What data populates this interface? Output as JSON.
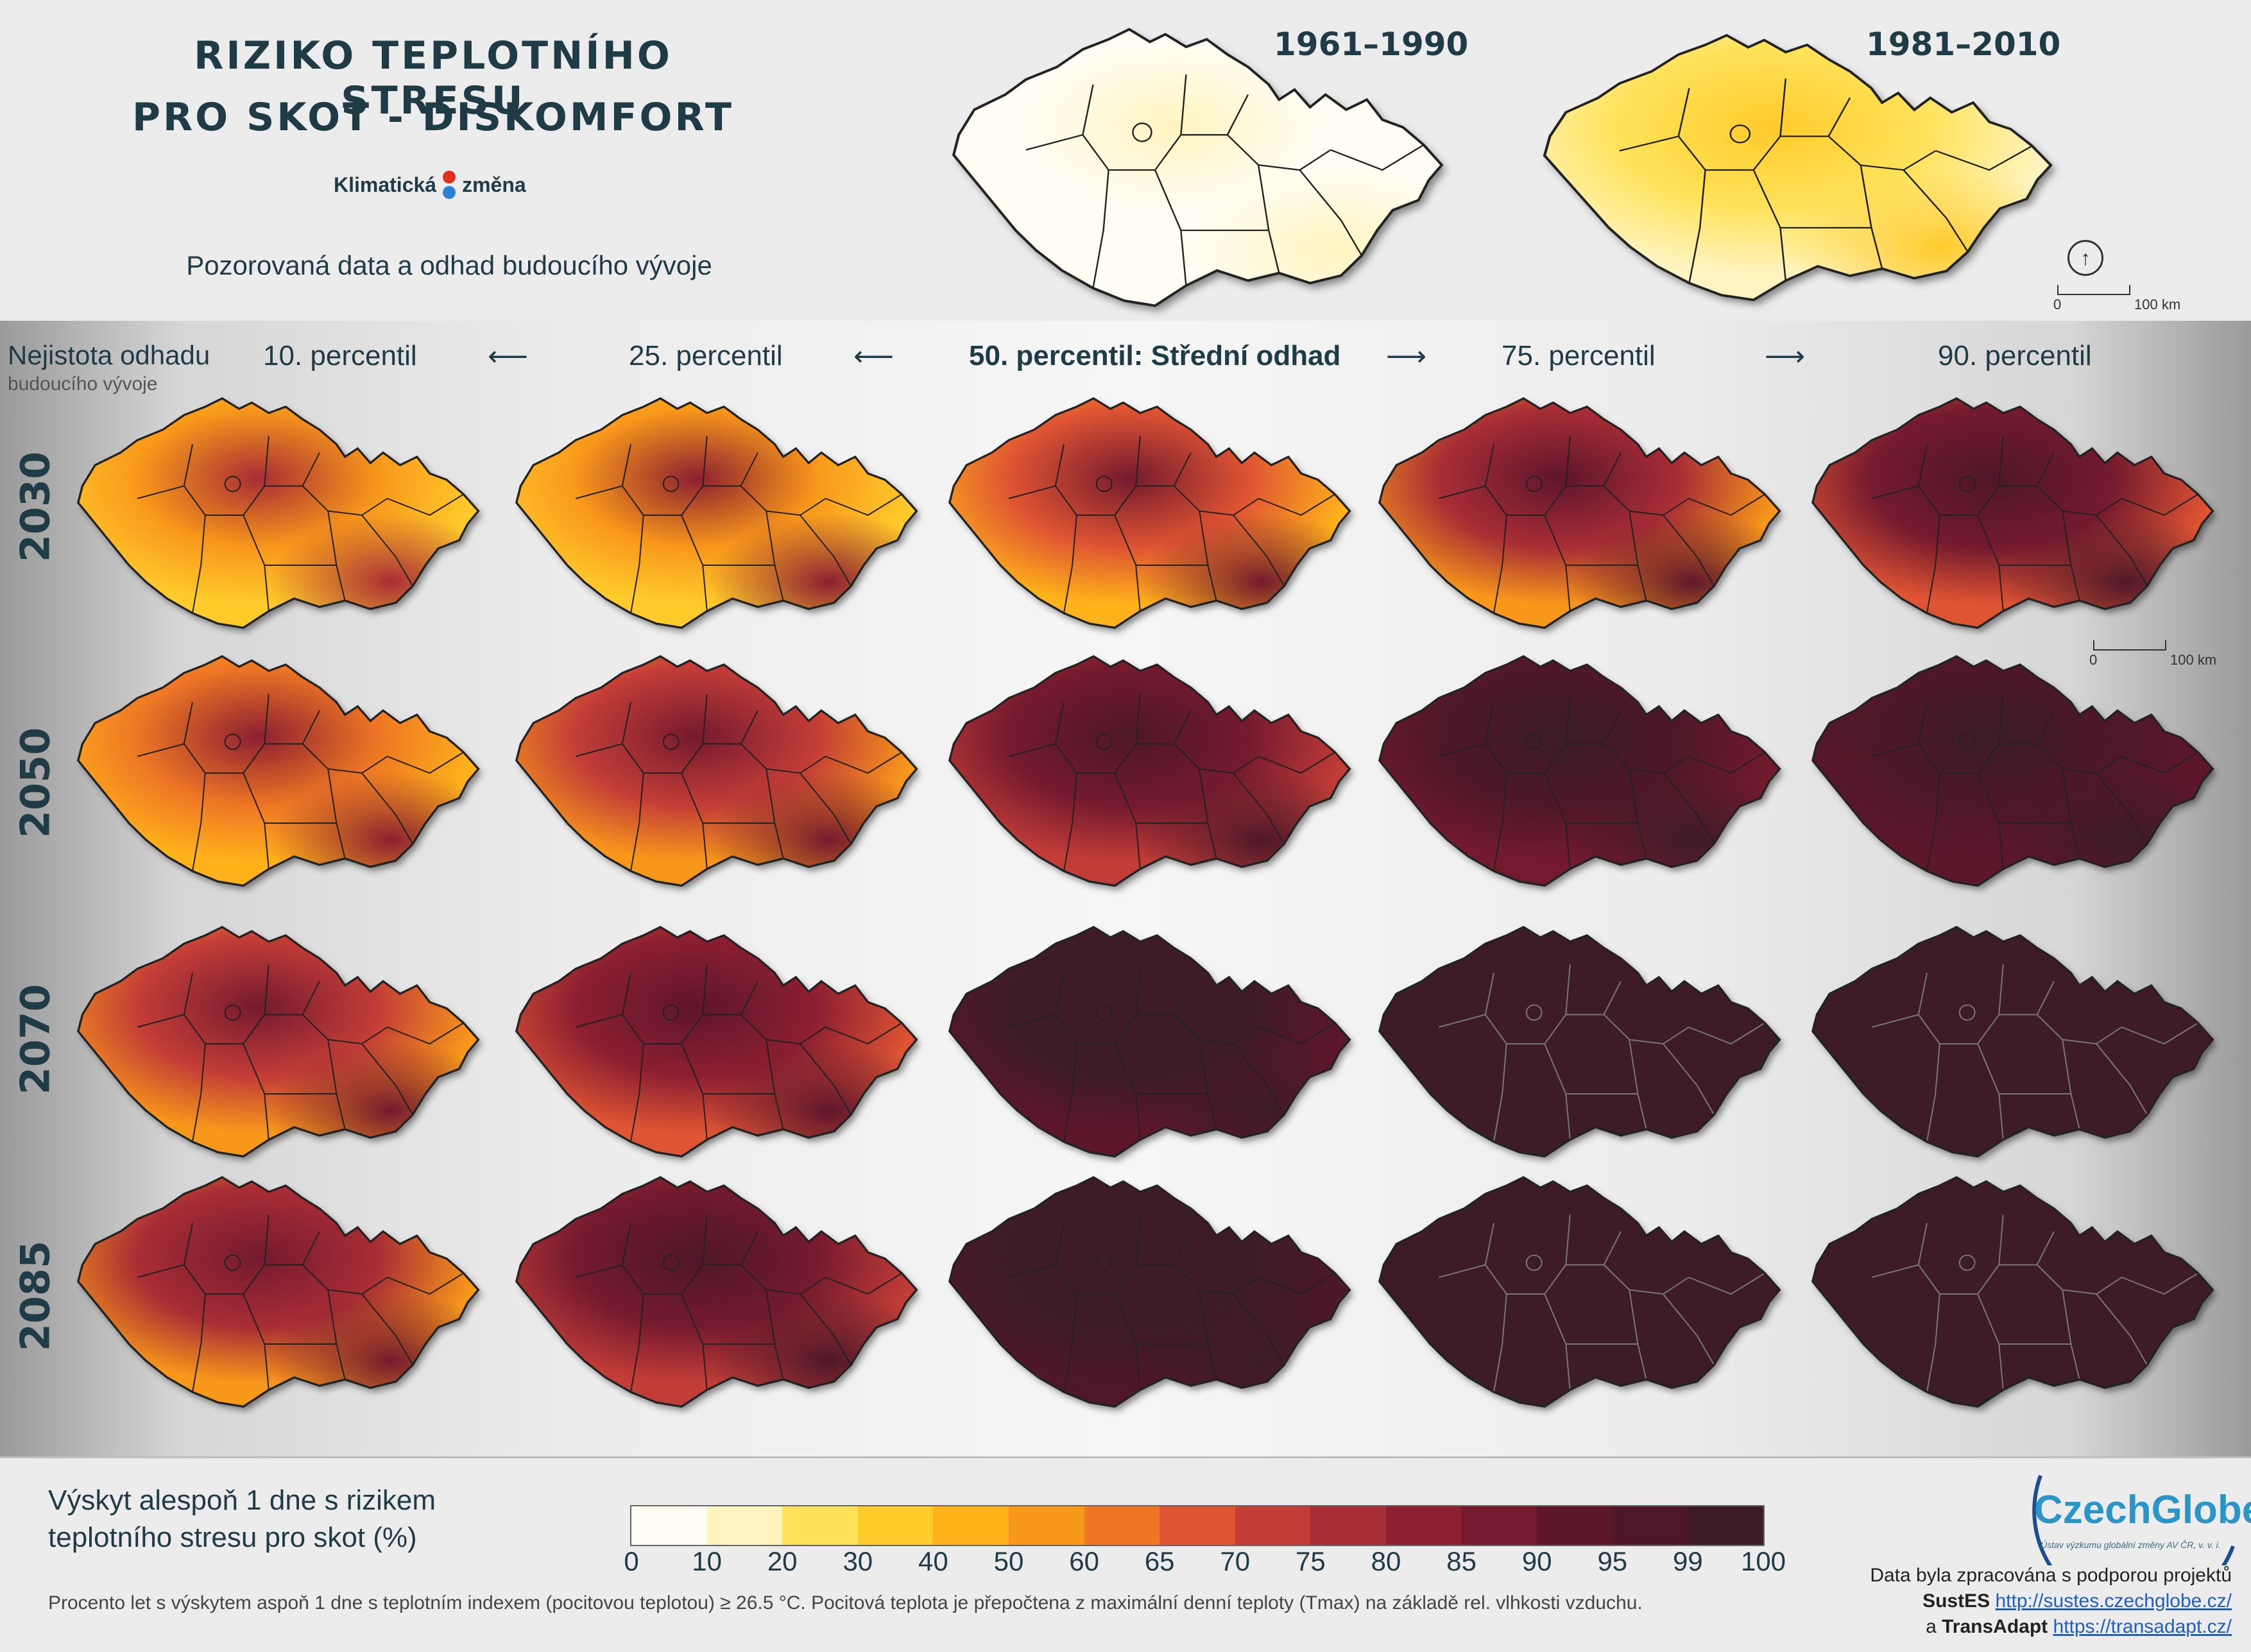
{
  "title": {
    "line1": "RIZIKO TEPLOTNÍHO STRESU",
    "line2": "PRO SKOT - DISKOMFORT"
  },
  "logo": {
    "part1": "Klimatická",
    "part2": "změna",
    "dot_colors": [
      "#e0301e",
      "#2e7fd9"
    ]
  },
  "subtitle": "Pozorovaná data a odhad budoucího vývoje",
  "observed_periods": [
    {
      "label": "1961–1990",
      "fill": "obs1"
    },
    {
      "label": "1981–2010",
      "fill": "obs2"
    }
  ],
  "uncertainty": {
    "label": "Nejistota odhadu",
    "sublabel": "budoucího vývoje"
  },
  "percentiles": [
    {
      "label": "10. percentil"
    },
    {
      "label": "25. percentil"
    },
    {
      "label": "50. percentil: Střední odhad"
    },
    {
      "label": "75. percentil"
    },
    {
      "label": "90. percentil"
    }
  ],
  "arrow_glyphs": {
    "left": "⟵",
    "right": "⟶"
  },
  "years": [
    "2030",
    "2050",
    "2070",
    "2085"
  ],
  "map_grid_fills": [
    [
      "p2030_10",
      "p2030_25",
      "p2030_50",
      "p2030_75",
      "p2030_90"
    ],
    [
      "p2050_10",
      "p2050_25",
      "p2050_50",
      "p2050_75",
      "p2050_90"
    ],
    [
      "p2070_10",
      "p2070_25",
      "p2070_50",
      "p2070_75",
      "p2070_90"
    ],
    [
      "p2085_10",
      "p2085_25",
      "p2085_50",
      "p2085_75",
      "p2085_90"
    ]
  ],
  "scale_bar": {
    "from": "0",
    "to": "100 km"
  },
  "north_arrow_icon": "north-arrow-icon",
  "legend": {
    "title_line1": "Výskyt alespoň 1 dne s rizikem",
    "title_line2": "teplotního stresu pro skot (%)",
    "ticks": [
      "0",
      "10",
      "20",
      "30",
      "40",
      "50",
      "60",
      "65",
      "70",
      "75",
      "80",
      "85",
      "90",
      "95",
      "99",
      "100"
    ],
    "colors": [
      "#fffdf3",
      "#fff4bf",
      "#ffe25a",
      "#ffcb2b",
      "#ffb21a",
      "#f8981b",
      "#ee7625",
      "#df5433",
      "#c33d37",
      "#a82d35",
      "#8c1f31",
      "#741a2e",
      "#5e162b",
      "#4e1828",
      "#3d1c28"
    ]
  },
  "note": "Procento let s výskytem aspoň 1 dne s teplotním indexem (pocitovou teplotou) ≥ 26.5 °C. Pocitová teplota je přepočtena z maximální denní teploty (Tmax) na základě rel. vlhkosti vzduchu.",
  "brand": {
    "name": "CzechGlobe",
    "tagline": "Ústav výzkumu globální změny AV ČR, v. v. i.",
    "color": "#2c95c8"
  },
  "credits": {
    "line1": "Data byla zpracována s podporou projektů",
    "project1": "SustES",
    "url1": "http://sustes.czechglobe.cz/",
    "conj": "a",
    "project2": "TransAdapt",
    "url2": "https://transadapt.cz/"
  }
}
